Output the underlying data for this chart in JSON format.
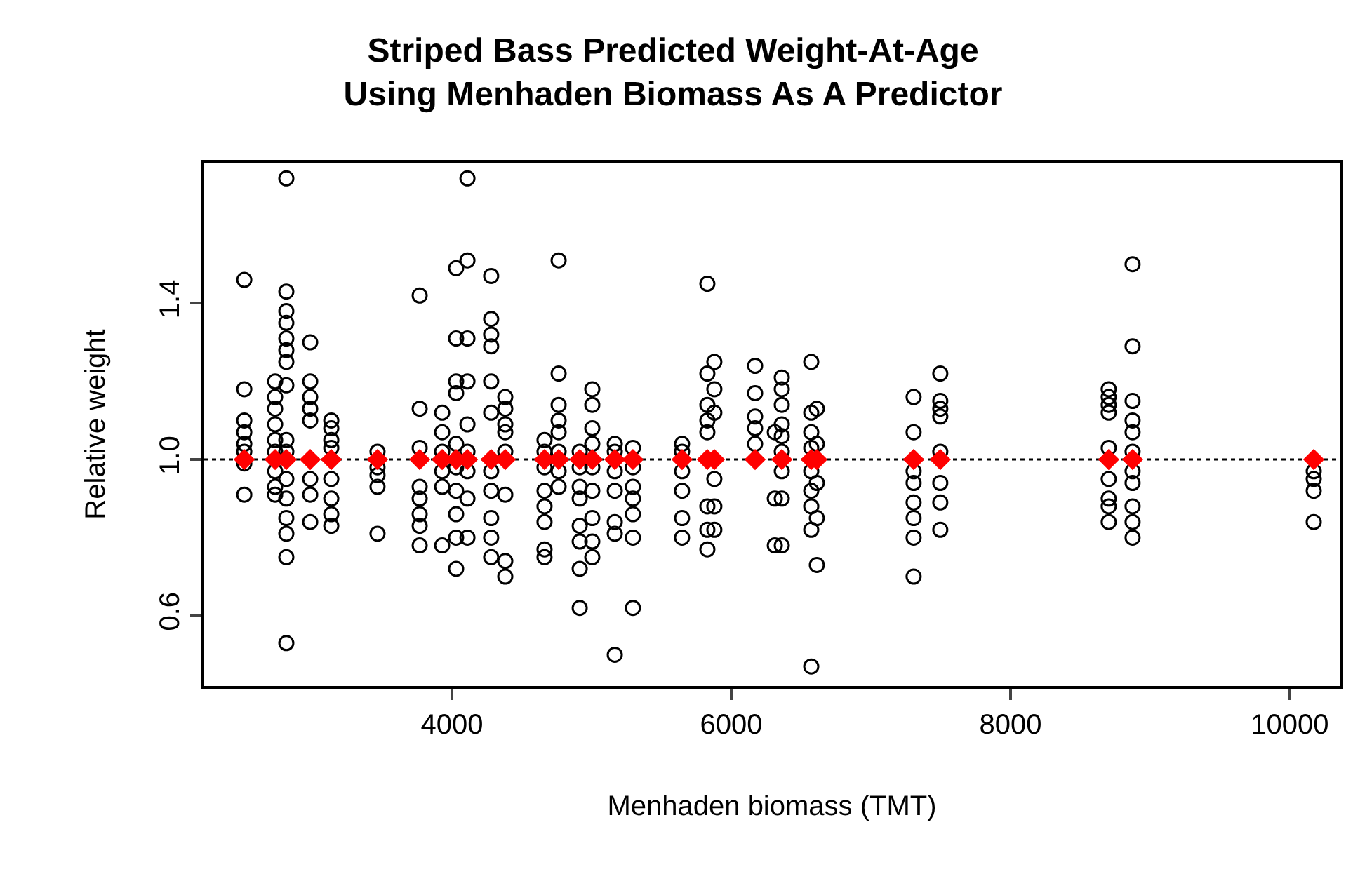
{
  "chart_data": {
    "type": "scatter",
    "title": "Striped Bass Predicted Weight-At-Age\nUsing Menhaden Biomass As A Predictor",
    "xlabel": "Menhaden biomass (TMT)",
    "ylabel": "Relative weight",
    "xlim": [
      2221,
      10362
    ],
    "ylim": [
      0.42,
      1.76
    ],
    "xticks": [
      4000,
      6000,
      8000,
      10000
    ],
    "yticks": [
      {
        "value": 0.6,
        "label": "0.6"
      },
      {
        "value": 1.0,
        "label": "1.0"
      },
      {
        "value": 1.4,
        "label": "1.4"
      }
    ],
    "ref_lines": [
      {
        "axis": "y",
        "value": 1.0,
        "color": "#000000",
        "line_style": "dotted"
      }
    ],
    "series": [
      {
        "color": "#000000",
        "marker": "circle",
        "x": [
          2513,
          2513,
          2513,
          2513,
          2513,
          2513,
          2513,
          2513,
          2734,
          2734,
          2734,
          2734,
          2734,
          2734,
          2734,
          2734,
          2734,
          2814,
          2814,
          2814,
          2814,
          2814,
          2814,
          2814,
          2814,
          2814,
          2814,
          2814,
          2814,
          2814,
          2814,
          2814,
          2814,
          2985,
          2985,
          2985,
          2985,
          2985,
          2985,
          2985,
          2985,
          3136,
          3136,
          3136,
          3136,
          3136,
          3136,
          3136,
          3136,
          3467,
          3467,
          3467,
          3467,
          3467,
          3769,
          3769,
          3769,
          3769,
          3769,
          3769,
          3769,
          3769,
          3930,
          3930,
          3930,
          3930,
          3930,
          3930,
          4030,
          4030,
          4030,
          4030,
          4030,
          4030,
          4030,
          4030,
          4030,
          4030,
          4111,
          4111,
          4111,
          4111,
          4111,
          4111,
          4111,
          4111,
          4111,
          4281,
          4281,
          4281,
          4281,
          4281,
          4281,
          4281,
          4281,
          4281,
          4281,
          4281,
          4382,
          4382,
          4382,
          4382,
          4382,
          4382,
          4382,
          4382,
          4663,
          4663,
          4663,
          4663,
          4663,
          4663,
          4663,
          4663,
          4764,
          4764,
          4764,
          4764,
          4764,
          4764,
          4764,
          4764,
          4915,
          4915,
          4915,
          4915,
          4915,
          4915,
          4915,
          4915,
          5005,
          5005,
          5005,
          5005,
          5005,
          5005,
          5005,
          5005,
          5005,
          5166,
          5166,
          5166,
          5166,
          5166,
          5166,
          5166,
          5296,
          5296,
          5296,
          5296,
          5296,
          5296,
          5296,
          5648,
          5648,
          5648,
          5648,
          5648,
          5648,
          5829,
          5829,
          5829,
          5829,
          5829,
          5829,
          5829,
          5829,
          5879,
          5879,
          5879,
          5879,
          5879,
          5879,
          6171,
          6171,
          6171,
          6171,
          6171,
          6312,
          6312,
          6312,
          6362,
          6362,
          6362,
          6362,
          6362,
          6362,
          6362,
          6362,
          6362,
          6573,
          6573,
          6573,
          6573,
          6573,
          6573,
          6573,
          6573,
          6573,
          6613,
          6613,
          6613,
          6613,
          6613,
          7306,
          7306,
          7306,
          7306,
          7306,
          7306,
          7306,
          7306,
          7497,
          7497,
          7497,
          7497,
          7497,
          7497,
          7497,
          7497,
          8703,
          8703,
          8703,
          8703,
          8703,
          8703,
          8703,
          8703,
          8703,
          8874,
          8874,
          8874,
          8874,
          8874,
          8874,
          8874,
          8874,
          8874,
          8874,
          8874,
          10171,
          10171,
          10171,
          10171
        ],
        "values": [
          1.46,
          1.18,
          1.1,
          1.07,
          1.04,
          1.02,
          0.99,
          0.91,
          1.2,
          1.16,
          1.13,
          1.09,
          1.05,
          1.02,
          0.97,
          0.93,
          0.91,
          1.72,
          1.43,
          1.38,
          1.35,
          1.31,
          1.28,
          1.25,
          1.19,
          1.05,
          1.02,
          0.95,
          0.9,
          0.85,
          0.81,
          0.75,
          0.53,
          1.3,
          1.2,
          1.16,
          1.13,
          1.1,
          0.95,
          0.91,
          0.84,
          1.1,
          1.08,
          1.05,
          1.03,
          0.95,
          0.9,
          0.86,
          0.83,
          1.02,
          0.98,
          0.96,
          0.93,
          0.81,
          1.42,
          1.13,
          1.03,
          0.93,
          0.9,
          0.86,
          0.83,
          0.78,
          1.12,
          1.07,
          1.02,
          0.97,
          0.93,
          0.78,
          1.49,
          1.31,
          1.2,
          1.17,
          1.04,
          0.98,
          0.92,
          0.86,
          0.8,
          0.72,
          1.72,
          1.51,
          1.31,
          1.2,
          1.09,
          1.02,
          0.97,
          0.9,
          0.8,
          1.47,
          1.36,
          1.32,
          1.29,
          1.2,
          1.12,
          0.97,
          0.92,
          0.85,
          0.8,
          0.75,
          1.16,
          1.13,
          1.09,
          1.07,
          1.02,
          0.91,
          0.74,
          0.7,
          1.05,
          1.02,
          0.98,
          0.92,
          0.88,
          0.84,
          0.77,
          0.75,
          1.51,
          1.22,
          1.14,
          1.1,
          1.07,
          1.02,
          0.97,
          0.93,
          1.02,
          0.98,
          0.93,
          0.9,
          0.83,
          0.79,
          0.72,
          0.62,
          1.18,
          1.14,
          1.08,
          1.04,
          0.98,
          0.92,
          0.85,
          0.79,
          0.75,
          1.04,
          1.02,
          0.97,
          0.92,
          0.84,
          0.81,
          0.5,
          1.03,
          0.98,
          0.93,
          0.9,
          0.86,
          0.8,
          0.62,
          1.04,
          1.02,
          0.97,
          0.92,
          0.85,
          0.8,
          1.45,
          1.22,
          1.14,
          1.1,
          1.07,
          0.88,
          0.82,
          0.77,
          1.25,
          1.18,
          1.12,
          0.95,
          0.88,
          0.82,
          1.24,
          1.17,
          1.11,
          1.08,
          1.04,
          1.07,
          0.9,
          0.78,
          1.21,
          1.18,
          1.14,
          1.09,
          1.06,
          1.02,
          0.97,
          0.9,
          0.78,
          1.25,
          1.12,
          1.07,
          1.03,
          0.97,
          0.92,
          0.88,
          0.82,
          0.47,
          1.13,
          1.04,
          0.94,
          0.85,
          0.73,
          1.16,
          1.07,
          0.97,
          0.94,
          0.89,
          0.85,
          0.8,
          0.7,
          1.22,
          1.15,
          1.13,
          1.11,
          1.02,
          0.94,
          0.89,
          0.82,
          1.18,
          1.16,
          1.14,
          1.12,
          1.03,
          0.95,
          0.9,
          0.88,
          0.84,
          1.5,
          1.29,
          1.15,
          1.1,
          1.07,
          1.02,
          0.97,
          0.94,
          0.88,
          0.84,
          0.8,
          0.97,
          0.95,
          0.92,
          0.84
        ]
      },
      {
        "color": "#ff0000",
        "marker": "diamond",
        "x": [
          2513,
          2734,
          2814,
          2985,
          3136,
          3467,
          3769,
          3930,
          4030,
          4111,
          4281,
          4382,
          4663,
          4764,
          4915,
          5005,
          5166,
          5296,
          5648,
          5829,
          5879,
          6171,
          6362,
          6573,
          6613,
          7306,
          7497,
          8703,
          8874,
          10171
        ],
        "values": [
          1,
          1,
          1,
          1,
          1,
          1,
          1,
          1,
          1,
          1,
          1,
          1,
          1,
          1,
          1,
          1,
          1,
          1,
          1,
          1,
          1,
          1,
          1,
          1,
          1,
          1,
          1,
          1,
          1,
          1
        ]
      }
    ]
  }
}
